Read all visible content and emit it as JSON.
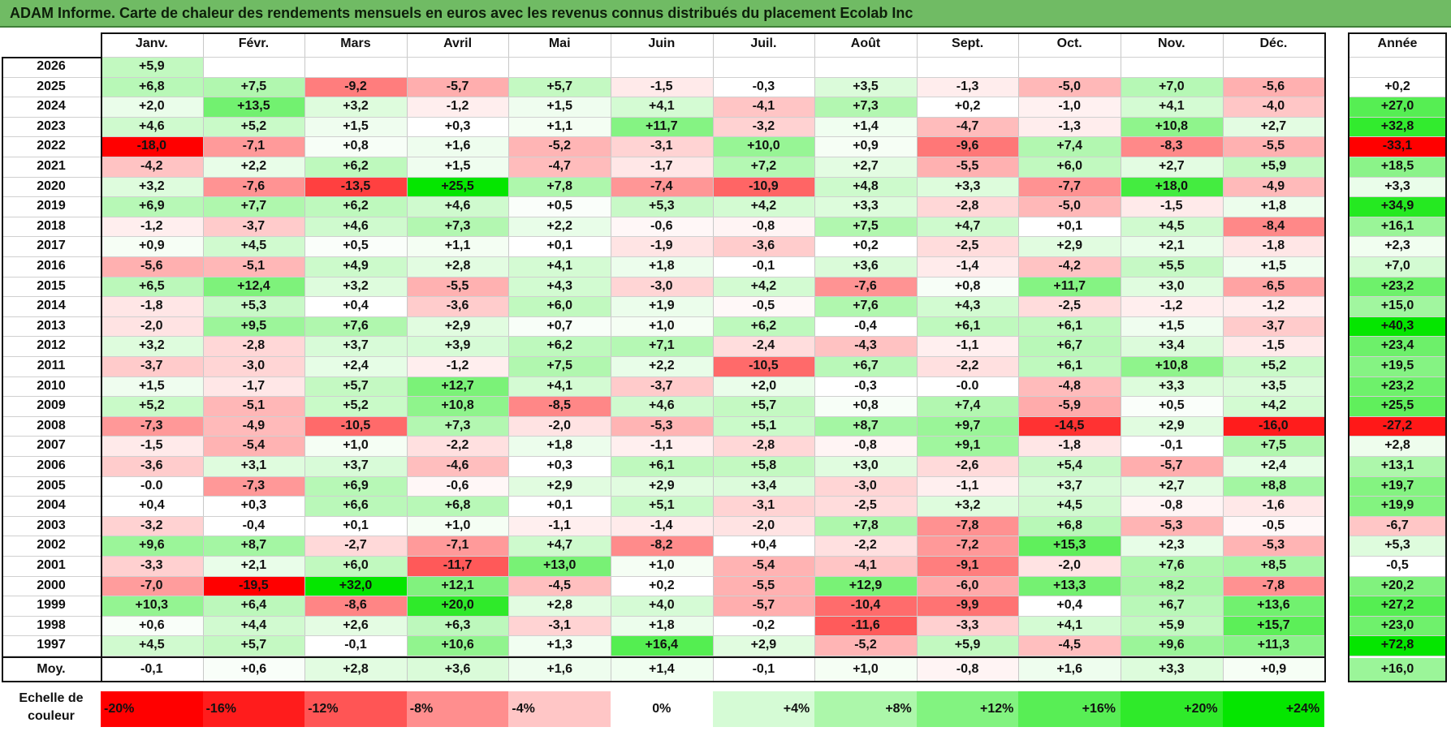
{
  "title": "ADAM Informe. Carte de chaleur des rendements mensuels en euros avec les revenus connus distribués du placement Ecolab Inc",
  "chart_data": {
    "type": "heatmap",
    "title": "ADAM Informe. Carte de chaleur des rendements mensuels en euros avec les revenus connus distribués du placement Ecolab Inc",
    "months": [
      "Janv.",
      "Févr.",
      "Mars",
      "Avril",
      "Mai",
      "Juin",
      "Juil.",
      "Août",
      "Sept.",
      "Oct.",
      "Nov.",
      "Déc."
    ],
    "annual_header": "Année",
    "rows": [
      {
        "year": "2026",
        "values": [
          5.9,
          null,
          null,
          null,
          null,
          null,
          null,
          null,
          null,
          null,
          null,
          null
        ],
        "annual": null
      },
      {
        "year": "2025",
        "values": [
          6.8,
          7.5,
          -9.2,
          -5.7,
          5.7,
          -1.5,
          -0.3,
          3.5,
          -1.3,
          -5.0,
          7.0,
          -5.6
        ],
        "annual": 0.2
      },
      {
        "year": "2024",
        "values": [
          2.0,
          13.5,
          3.2,
          -1.2,
          1.5,
          4.1,
          -4.1,
          7.3,
          0.2,
          -1.0,
          4.1,
          -4.0
        ],
        "annual": 27.0
      },
      {
        "year": "2023",
        "values": [
          4.6,
          5.2,
          1.5,
          0.3,
          1.1,
          11.7,
          -3.2,
          1.4,
          -4.7,
          -1.3,
          10.8,
          2.7
        ],
        "annual": 32.8
      },
      {
        "year": "2022",
        "values": [
          -18.0,
          -7.1,
          0.8,
          1.6,
          -5.2,
          -3.1,
          10.0,
          0.9,
          -9.6,
          7.4,
          -8.3,
          -5.5
        ],
        "annual": -33.1
      },
      {
        "year": "2021",
        "values": [
          -4.2,
          2.2,
          6.2,
          1.5,
          -4.7,
          -1.7,
          7.2,
          2.7,
          -5.5,
          6.0,
          2.7,
          5.9
        ],
        "annual": 18.5
      },
      {
        "year": "2020",
        "values": [
          3.2,
          -7.6,
          -13.5,
          25.5,
          7.8,
          -7.4,
          -10.9,
          4.8,
          3.3,
          -7.7,
          18.0,
          -4.9
        ],
        "annual": 3.3
      },
      {
        "year": "2019",
        "values": [
          6.9,
          7.7,
          6.2,
          4.6,
          0.5,
          5.3,
          4.2,
          3.3,
          -2.8,
          -5.0,
          -1.5,
          1.8
        ],
        "annual": 34.9
      },
      {
        "year": "2018",
        "values": [
          -1.2,
          -3.7,
          4.6,
          7.3,
          2.2,
          -0.6,
          -0.8,
          7.5,
          4.7,
          0.1,
          4.5,
          -8.4
        ],
        "annual": 16.1
      },
      {
        "year": "2017",
        "values": [
          0.9,
          4.5,
          0.5,
          1.1,
          0.1,
          -1.9,
          -3.6,
          0.2,
          -2.5,
          2.9,
          2.1,
          -1.8
        ],
        "annual": 2.3
      },
      {
        "year": "2016",
        "values": [
          -5.6,
          -5.1,
          4.9,
          2.8,
          4.1,
          1.8,
          -0.1,
          3.6,
          -1.4,
          -4.2,
          5.5,
          1.5
        ],
        "annual": 7.0
      },
      {
        "year": "2015",
        "values": [
          6.5,
          12.4,
          3.2,
          -5.5,
          4.3,
          -3.0,
          4.2,
          -7.6,
          0.8,
          11.7,
          3.0,
          -6.5
        ],
        "annual": 23.2
      },
      {
        "year": "2014",
        "values": [
          -1.8,
          5.3,
          0.4,
          -3.6,
          6.0,
          1.9,
          -0.5,
          7.6,
          4.3,
          -2.5,
          -1.2,
          -1.2
        ],
        "annual": 15.0
      },
      {
        "year": "2013",
        "values": [
          -2.0,
          9.5,
          7.6,
          2.9,
          0.7,
          1.0,
          6.2,
          -0.4,
          6.1,
          6.1,
          1.5,
          -3.7
        ],
        "annual": 40.3
      },
      {
        "year": "2012",
        "values": [
          3.2,
          -2.8,
          3.7,
          3.9,
          6.2,
          7.1,
          -2.4,
          -4.3,
          -1.1,
          6.7,
          3.4,
          -1.5
        ],
        "annual": 23.4
      },
      {
        "year": "2011",
        "values": [
          -3.7,
          -3.0,
          2.4,
          -1.2,
          7.5,
          2.2,
          -10.5,
          6.7,
          -2.2,
          6.1,
          10.8,
          5.2
        ],
        "annual": 19.5
      },
      {
        "year": "2010",
        "values": [
          1.5,
          -1.7,
          5.7,
          12.7,
          4.1,
          -3.7,
          2.0,
          -0.3,
          "-0.0",
          -4.8,
          3.3,
          3.5
        ],
        "annual": 23.2
      },
      {
        "year": "2009",
        "values": [
          5.2,
          -5.1,
          5.2,
          10.8,
          -8.5,
          4.6,
          5.7,
          0.8,
          7.4,
          -5.9,
          0.5,
          4.2
        ],
        "annual": 25.5
      },
      {
        "year": "2008",
        "values": [
          -7.3,
          -4.9,
          -10.5,
          7.3,
          -2.0,
          -5.3,
          5.1,
          8.7,
          9.7,
          -14.5,
          2.9,
          -16.0
        ],
        "annual": -27.2
      },
      {
        "year": "2007",
        "values": [
          -1.5,
          -5.4,
          1.0,
          -2.2,
          1.8,
          -1.1,
          -2.8,
          -0.8,
          9.1,
          -1.8,
          -0.1,
          7.5
        ],
        "annual": 2.8
      },
      {
        "year": "2006",
        "values": [
          -3.6,
          3.1,
          3.7,
          -4.6,
          0.3,
          6.1,
          5.8,
          3.0,
          -2.6,
          5.4,
          -5.7,
          2.4
        ],
        "annual": 13.1
      },
      {
        "year": "2005",
        "values": [
          "-0.0",
          -7.3,
          6.9,
          -0.6,
          2.9,
          2.9,
          3.4,
          -3.0,
          -1.1,
          3.7,
          2.7,
          8.8
        ],
        "annual": 19.7
      },
      {
        "year": "2004",
        "values": [
          0.4,
          0.3,
          6.6,
          6.8,
          0.1,
          5.1,
          -3.1,
          -2.5,
          3.2,
          4.5,
          -0.8,
          -1.6
        ],
        "annual": 19.9
      },
      {
        "year": "2003",
        "values": [
          -3.2,
          -0.4,
          0.1,
          1.0,
          -1.1,
          -1.4,
          -2.0,
          7.8,
          -7.8,
          6.8,
          -5.3,
          -0.5
        ],
        "annual": -6.7
      },
      {
        "year": "2002",
        "values": [
          9.6,
          8.7,
          -2.7,
          -7.1,
          4.7,
          -8.2,
          0.4,
          -2.2,
          -7.2,
          15.3,
          2.3,
          -5.3
        ],
        "annual": 5.3
      },
      {
        "year": "2001",
        "values": [
          -3.3,
          2.1,
          6.0,
          -11.7,
          13.0,
          1.0,
          -5.4,
          -4.1,
          -9.1,
          -2.0,
          7.6,
          8.5
        ],
        "annual": -0.5
      },
      {
        "year": "2000",
        "values": [
          -7.0,
          -19.5,
          32.0,
          12.1,
          -4.5,
          0.2,
          -5.5,
          12.9,
          -6.0,
          13.3,
          8.2,
          -7.8
        ],
        "annual": 20.2
      },
      {
        "year": "1999",
        "values": [
          10.3,
          6.4,
          -8.6,
          20.0,
          2.8,
          4.0,
          -5.7,
          -10.4,
          -9.9,
          0.4,
          6.7,
          13.6
        ],
        "annual": 27.2
      },
      {
        "year": "1998",
        "values": [
          0.6,
          4.4,
          2.6,
          6.3,
          -3.1,
          1.8,
          -0.2,
          -11.6,
          -3.3,
          4.1,
          5.9,
          15.7
        ],
        "annual": 23.0
      },
      {
        "year": "1997",
        "values": [
          4.5,
          5.7,
          -0.1,
          10.6,
          1.3,
          16.4,
          2.9,
          -5.2,
          5.9,
          -4.5,
          9.6,
          11.3
        ],
        "annual": 72.8
      }
    ],
    "average": {
      "label": "Moy.",
      "values": [
        -0.1,
        0.6,
        2.8,
        3.6,
        1.6,
        1.4,
        -0.1,
        1.0,
        -0.8,
        1.6,
        3.3,
        0.9
      ],
      "annual": 16.0
    },
    "color_scale": {
      "label_line1": "Echelle de",
      "label_line2": "couleur",
      "stops": [
        "-20%",
        "-16%",
        "-12%",
        "-8%",
        "-4%",
        "0%",
        "+4%",
        "+8%",
        "+12%",
        "+16%",
        "+20%",
        "+24%"
      ],
      "stop_values": [
        -20,
        -16,
        -12,
        -8,
        -4,
        0,
        4,
        8,
        12,
        16,
        20,
        24
      ]
    },
    "colors": {
      "negative_max": "#ff0000",
      "positive_max": "#00e600",
      "neutral": "#ffffff",
      "title_bg": "#70bb64"
    }
  }
}
